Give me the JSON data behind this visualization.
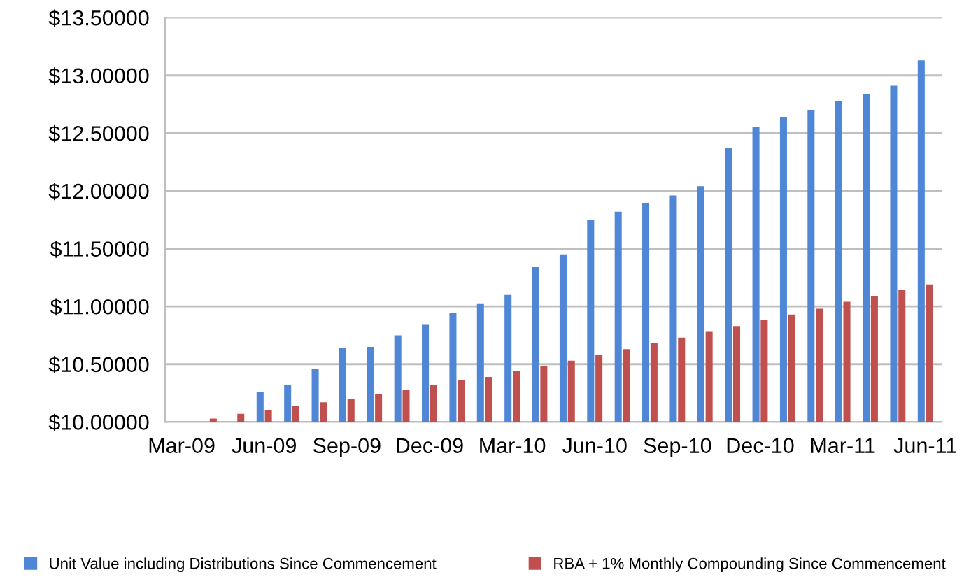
{
  "chart_data": {
    "type": "bar",
    "categories": [
      "Mar-09",
      null,
      null,
      "Jun-09",
      null,
      null,
      "Sep-09",
      null,
      null,
      "Dec-09",
      null,
      null,
      "Mar-10",
      null,
      null,
      "Jun-10",
      null,
      null,
      "Sep-10",
      null,
      null,
      "Dec-10",
      null,
      null,
      "Mar-11",
      null,
      null,
      "Jun-11"
    ],
    "series": [
      {
        "name": "Unit Value including Distributions Since Commencement",
        "color": "#4f86d6",
        "values": [
          10.0,
          10.0,
          10.0,
          10.26,
          10.32,
          10.46,
          10.64,
          10.65,
          10.75,
          10.84,
          10.94,
          11.02,
          11.1,
          11.34,
          11.45,
          11.75,
          11.82,
          11.89,
          11.96,
          12.04,
          12.37,
          12.55,
          12.64,
          12.7,
          12.78,
          12.84,
          12.91,
          13.13
        ]
      },
      {
        "name": "RBA + 1% Monthly Compounding Since Commencement",
        "color": "#c0504d",
        "values": [
          10.0,
          10.03,
          10.07,
          10.1,
          10.14,
          10.17,
          10.2,
          10.24,
          10.28,
          10.32,
          10.36,
          10.39,
          10.44,
          10.48,
          10.53,
          10.58,
          10.63,
          10.68,
          10.73,
          10.78,
          10.83,
          10.88,
          10.93,
          10.98,
          11.04,
          11.09,
          11.14,
          11.19
        ]
      }
    ],
    "ylim": [
      10.0,
      13.5
    ],
    "yticks": [
      {
        "value": 10.0,
        "label": "$10.00000"
      },
      {
        "value": 10.5,
        "label": "$10.50000"
      },
      {
        "value": 11.0,
        "label": "$11.00000"
      },
      {
        "value": 11.5,
        "label": "$11.50000"
      },
      {
        "value": 12.0,
        "label": "$12.00000"
      },
      {
        "value": 12.5,
        "label": "$12.50000"
      },
      {
        "value": 13.0,
        "label": "$13.00000"
      },
      {
        "value": 13.5,
        "label": "$13.50000"
      }
    ],
    "grid": "y",
    "legend": "bottom"
  }
}
